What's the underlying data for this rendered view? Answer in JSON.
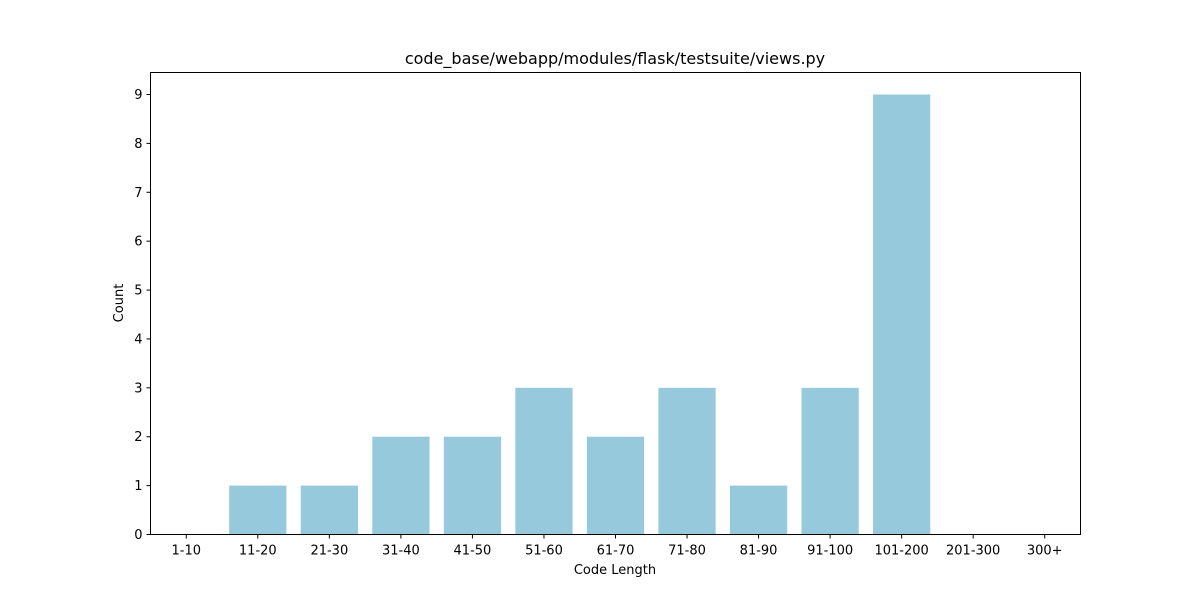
{
  "chart_data": {
    "type": "bar",
    "title": "code_base/webapp/modules/flask/testsuite/views.py",
    "xlabel": "Code Length",
    "ylabel": "Count",
    "categories": [
      "1-10",
      "11-20",
      "21-30",
      "31-40",
      "41-50",
      "51-60",
      "61-70",
      "71-80",
      "81-90",
      "91-100",
      "101-200",
      "201-300",
      "300+"
    ],
    "values": [
      0,
      1,
      1,
      2,
      2,
      3,
      2,
      3,
      1,
      3,
      9,
      0,
      0
    ],
    "ylim": [
      0,
      9.45
    ],
    "yticks": [
      0,
      1,
      2,
      3,
      4,
      5,
      6,
      7,
      8,
      9
    ],
    "bar_color": "#96c9dc",
    "grid": false,
    "legend": false
  }
}
